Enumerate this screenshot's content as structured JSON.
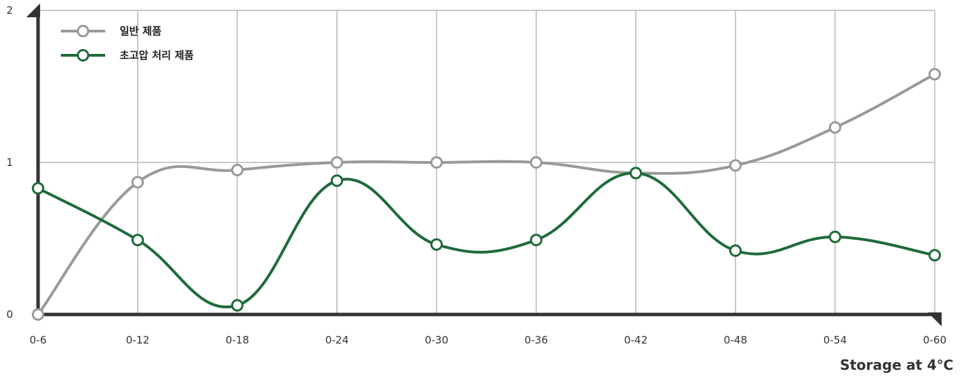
{
  "chart_data": {
    "type": "line",
    "xlabel": "Storage at 4℃",
    "ylabel": "",
    "ylim": [
      0,
      2
    ],
    "yticks": [
      "0",
      "1",
      "2"
    ],
    "categories": [
      "0-6",
      "0-12",
      "0-18",
      "0-24",
      "0-30",
      "0-36",
      "0-42",
      "0-48",
      "0-54",
      "0-60"
    ],
    "grid": true,
    "legend_position": "top-left",
    "series": [
      {
        "name": "일반 제품",
        "color": "#999999",
        "values": [
          0.0,
          0.87,
          0.95,
          1.0,
          1.0,
          1.0,
          0.93,
          0.98,
          1.23,
          1.58
        ]
      },
      {
        "name": "초고압 처리 제품",
        "color": "#1e6a3a",
        "values": [
          0.83,
          0.49,
          0.06,
          0.88,
          0.46,
          0.49,
          0.93,
          0.42,
          0.51,
          0.39
        ]
      }
    ]
  }
}
